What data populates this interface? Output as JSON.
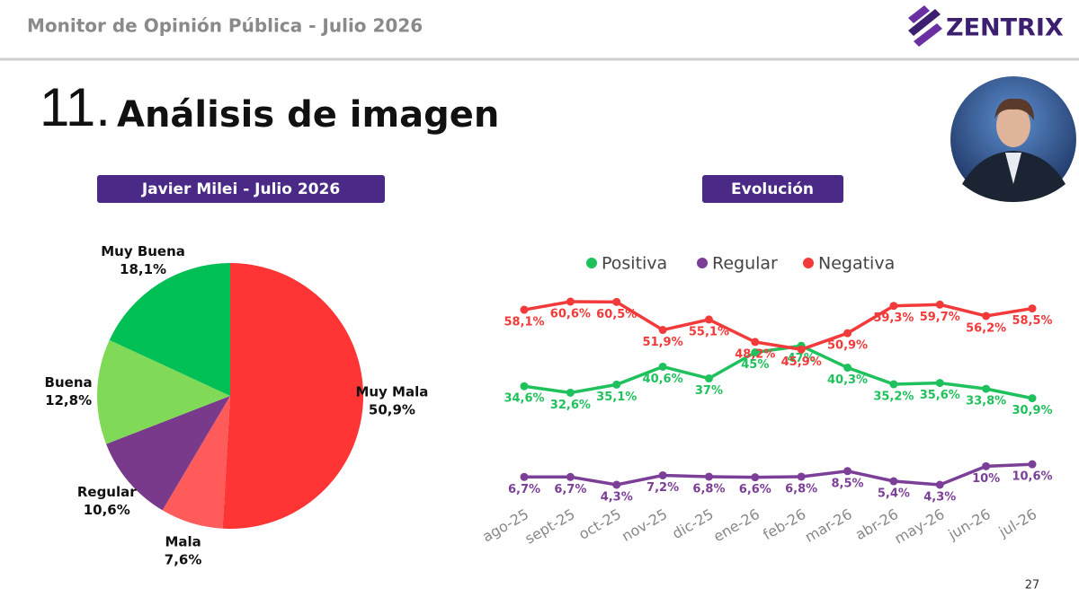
{
  "header": {
    "title": "Monitor de Opinión Pública - Julio 2026",
    "brand": "ZENTRIX",
    "section_number": "11.",
    "section_title": "Análisis de imagen",
    "page_number": "27"
  },
  "chart_data": [
    {
      "type": "pie",
      "title": "Javier Milei - Julio 2026",
      "categories": [
        "Muy Mala",
        "Mala",
        "Regular",
        "Buena",
        "Muy Buena"
      ],
      "values": [
        50.9,
        7.6,
        10.6,
        12.8,
        18.1
      ],
      "value_labels": [
        "50,9%",
        "7,6%",
        "10,6%",
        "12,8%",
        "18,1%"
      ],
      "colors": [
        "#ff3434",
        "#ff5b5b",
        "#7a3a8c",
        "#80d957",
        "#00bf55"
      ]
    },
    {
      "type": "line",
      "title": "Evolución",
      "categories": [
        "ago-25",
        "sept-25",
        "oct-25",
        "nov-25",
        "dic-25",
        "ene-26",
        "feb-26",
        "mar-26",
        "abr-26",
        "may-26",
        "jun-26",
        "jul-26"
      ],
      "series": [
        {
          "name": "Positiva",
          "color": "#1fc15c",
          "values": [
            34.6,
            32.6,
            35.1,
            40.6,
            37,
            45,
            47,
            40.3,
            35.2,
            35.6,
            33.8,
            30.9
          ],
          "value_labels": [
            "34,6%",
            "32,6%",
            "35,1%",
            "40,6%",
            "37%",
            "45%",
            "47%",
            "40,3%",
            "35,2%",
            "35,6%",
            "33,8%",
            "30,9%"
          ]
        },
        {
          "name": "Regular",
          "color": "#7b3f98",
          "values": [
            6.7,
            6.7,
            4.3,
            7.2,
            6.8,
            6.6,
            6.8,
            8.5,
            5.4,
            4.3,
            10,
            10.6
          ],
          "value_labels": [
            "6,7%",
            "6,7%",
            "4,3%",
            "7,2%",
            "6,8%",
            "6,6%",
            "6,8%",
            "8,5%",
            "5,4%",
            "4,3%",
            "10%",
            "10,6%"
          ]
        },
        {
          "name": "Negativa",
          "color": "#f23a3a",
          "values": [
            58.1,
            60.6,
            60.5,
            51.9,
            55.1,
            48.2,
            45.9,
            50.9,
            59.3,
            59.7,
            56.2,
            58.5
          ],
          "value_labels": [
            "58,1%",
            "60,6%",
            "60,5%",
            "51,9%",
            "55,1%",
            "48,2%",
            "45,9%",
            "50,9%",
            "59,3%",
            "59,7%",
            "56,2%",
            "58,5%"
          ]
        }
      ]
    }
  ]
}
